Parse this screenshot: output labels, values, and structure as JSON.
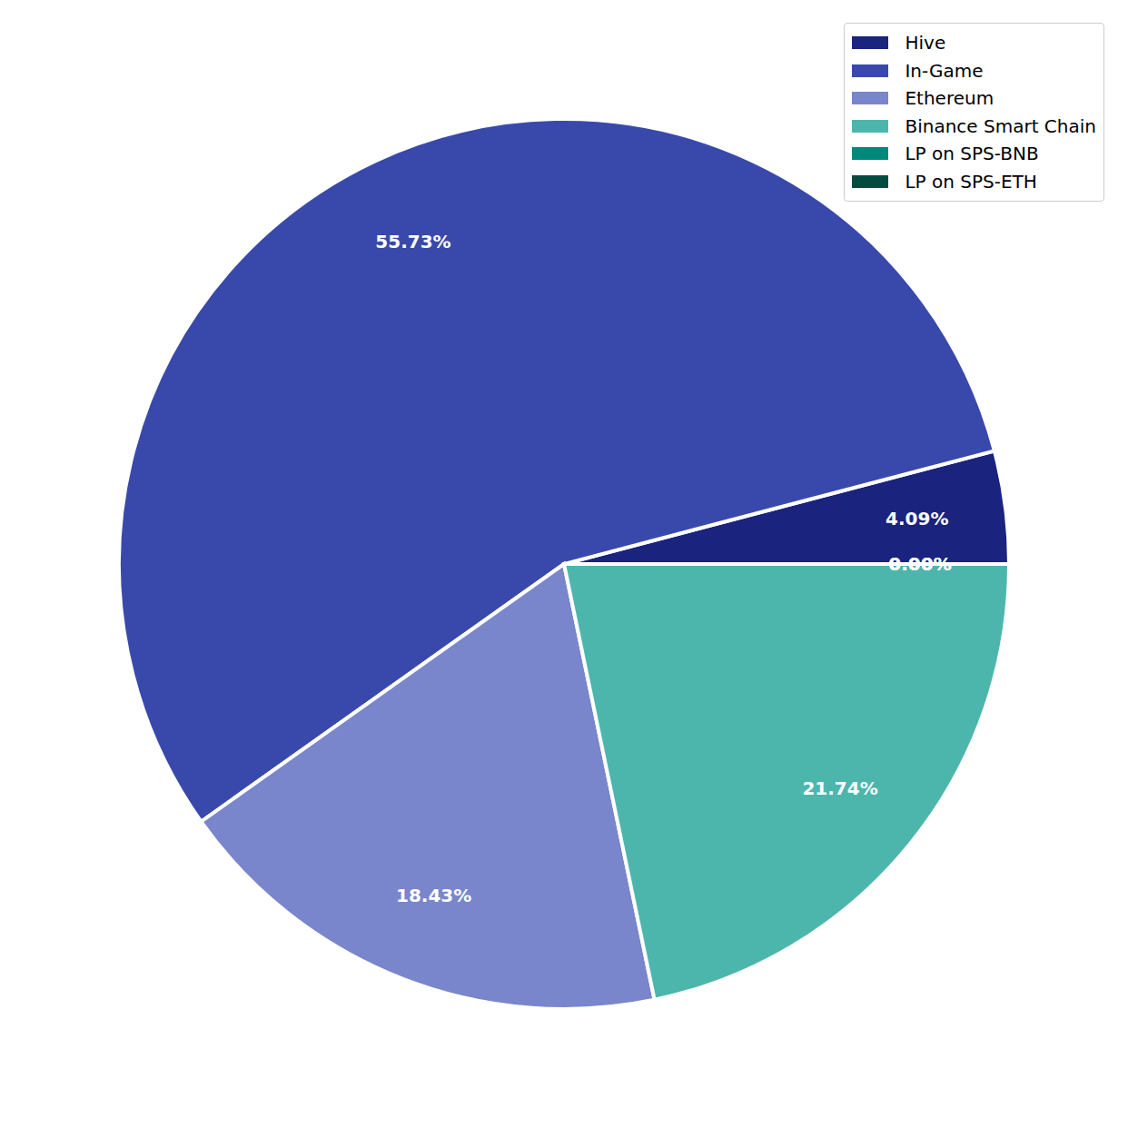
{
  "chart_data": {
    "type": "pie",
    "categories": [
      "Hive",
      "In-Game",
      "Ethereum",
      "Binance Smart Chain",
      "LP on SPS-BNB",
      "LP on SPS-ETH"
    ],
    "values": [
      4.09,
      55.73,
      18.43,
      21.74,
      0.0,
      0.0
    ],
    "value_labels": [
      "4.09%",
      "55.73%",
      "18.43%",
      "21.74%",
      "0.00%",
      "0.00%"
    ],
    "colors": [
      "#1a237e",
      "#3949ab",
      "#7986cb",
      "#4db6ac",
      "#00897b",
      "#004d40"
    ],
    "data_labels": true,
    "legend": "upper right"
  }
}
